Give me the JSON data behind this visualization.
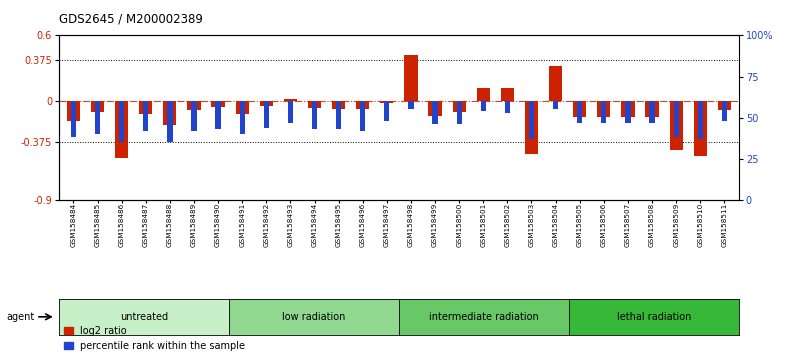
{
  "title": "GDS2645 / M200002389",
  "samples": [
    "GSM158484",
    "GSM158485",
    "GSM158486",
    "GSM158487",
    "GSM158488",
    "GSM158489",
    "GSM158490",
    "GSM158491",
    "GSM158492",
    "GSM158493",
    "GSM158494",
    "GSM158495",
    "GSM158496",
    "GSM158497",
    "GSM158498",
    "GSM158499",
    "GSM158500",
    "GSM158501",
    "GSM158502",
    "GSM158503",
    "GSM158504",
    "GSM158505",
    "GSM158506",
    "GSM158507",
    "GSM158508",
    "GSM158509",
    "GSM158510",
    "GSM158511"
  ],
  "log2_ratio": [
    -0.18,
    -0.1,
    -0.52,
    -0.12,
    -0.22,
    -0.08,
    -0.05,
    -0.12,
    -0.04,
    0.02,
    -0.06,
    -0.07,
    -0.07,
    -0.02,
    0.42,
    -0.13,
    -0.1,
    0.12,
    0.12,
    -0.48,
    0.32,
    -0.14,
    -0.14,
    -0.14,
    -0.14,
    -0.44,
    -0.5,
    -0.08
  ],
  "percentile_rank": [
    38,
    40,
    35,
    42,
    35,
    42,
    43,
    40,
    44,
    47,
    43,
    43,
    42,
    48,
    55,
    46,
    46,
    54,
    53,
    37,
    55,
    47,
    47,
    47,
    47,
    38,
    37,
    48
  ],
  "groups": [
    {
      "label": "untreated",
      "start": 0,
      "end": 7,
      "color": "#c8f0c8"
    },
    {
      "label": "low radiation",
      "start": 7,
      "end": 14,
      "color": "#90d890"
    },
    {
      "label": "intermediate radiation",
      "start": 14,
      "end": 21,
      "color": "#68c868"
    },
    {
      "label": "lethal radiation",
      "start": 21,
      "end": 28,
      "color": "#38b838"
    }
  ],
  "ylim_left": [
    -0.9,
    0.6
  ],
  "ylim_right": [
    0,
    100
  ],
  "yticks_left": [
    -0.9,
    -0.375,
    0.0,
    0.375,
    0.6
  ],
  "ytick_labels_left": [
    "-0.9",
    "-0.375",
    "0",
    "0.375",
    "0.6"
  ],
  "yticks_right": [
    0,
    25,
    50,
    75,
    100
  ],
  "ytick_labels_right": [
    "0",
    "25",
    "50",
    "75",
    "100%"
  ],
  "hlines": [
    0.375,
    -0.375
  ],
  "bar_color_red": "#cc2200",
  "bar_color_blue": "#2244cc",
  "bg_color": "#ffffff",
  "legend_red": "log2 ratio",
  "legend_blue": "percentile rank within the sample",
  "agent_label": "agent"
}
